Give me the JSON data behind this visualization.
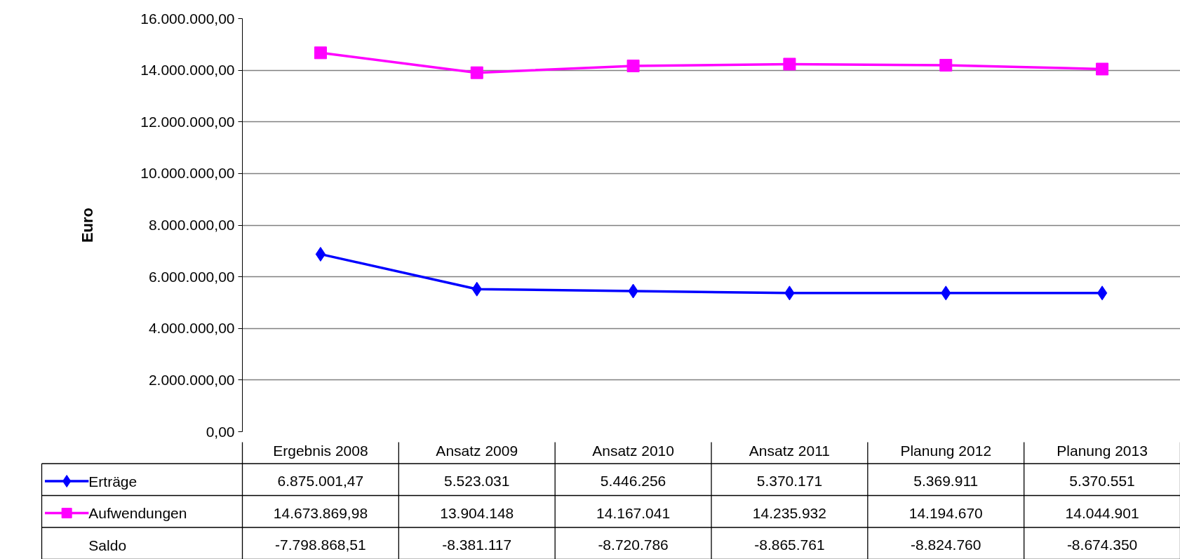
{
  "chart_data": {
    "type": "line",
    "ylabel": "Euro",
    "categories": [
      "Ergebnis 2008",
      "Ansatz 2009",
      "Ansatz 2010",
      "Ansatz 2011",
      "Planung 2012",
      "Planung 2013"
    ],
    "series": [
      {
        "name": "Erträge",
        "color": "#0000ff",
        "marker": "diamond",
        "values": [
          6875001.47,
          5523031,
          5446256,
          5370171,
          5369911,
          5370551
        ],
        "value_labels": [
          "6.875.001,47",
          "5.523.031",
          "5.446.256",
          "5.370.171",
          "5.369.911",
          "5.370.551"
        ]
      },
      {
        "name": "Aufwendungen",
        "color": "#ff00ff",
        "marker": "square",
        "values": [
          14673869.98,
          13904148,
          14167041,
          14235932,
          14194670,
          14044901
        ],
        "value_labels": [
          "14.673.869,98",
          "13.904.148",
          "14.167.041",
          "14.235.932",
          "14.194.670",
          "14.044.901"
        ]
      },
      {
        "name": "Saldo",
        "type": "other",
        "values": [
          null,
          null,
          null,
          null,
          null,
          null
        ],
        "value_labels": [
          "-7.798.868,51",
          "-8.381.117",
          "-8.720.786",
          "-8.865.761",
          "-8.824.760",
          "-8.674.350"
        ]
      }
    ],
    "ylim": [
      0,
      16000000
    ],
    "yticks": [
      {
        "value": 0,
        "label": "0,00"
      },
      {
        "value": 2000000,
        "label": "2.000.000,00"
      },
      {
        "value": 4000000,
        "label": "4.000.000,00"
      },
      {
        "value": 6000000,
        "label": "6.000.000,00"
      },
      {
        "value": 8000000,
        "label": "8.000.000,00"
      },
      {
        "value": 10000000,
        "label": "10.000.000,00"
      },
      {
        "value": 12000000,
        "label": "12.000.000,00"
      },
      {
        "value": 14000000,
        "label": "14.000.000,00"
      },
      {
        "value": 16000000,
        "label": "16.000.000,00"
      }
    ],
    "grid": "y",
    "legend": "bottom",
    "line_style": "solid"
  }
}
